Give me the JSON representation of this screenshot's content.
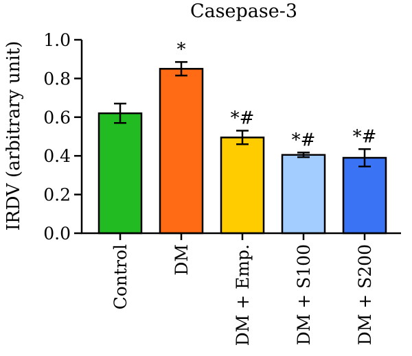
{
  "chart_data": {
    "type": "bar",
    "title": "Casepase-3",
    "ylabel": "IRDV (arbitrary unit)",
    "xlabel": "",
    "ylim": [
      0,
      1.0
    ],
    "yticks": [
      "0.0",
      "0.2",
      "0.4",
      "0.6",
      "0.8",
      "1.0"
    ],
    "categories": [
      "Control",
      "DM",
      "DM + Emp.",
      "DM + S100",
      "DM + S200"
    ],
    "values": [
      0.62,
      0.85,
      0.495,
      0.405,
      0.39
    ],
    "errors": [
      0.05,
      0.035,
      0.035,
      0.012,
      0.045
    ],
    "annotations": [
      "",
      "*",
      "*#",
      "*#",
      "*#"
    ],
    "colors": [
      "#22bb22",
      "#ff6a14",
      "#ffcc00",
      "#a3ccff",
      "#3b73f5"
    ],
    "grid": false,
    "legend": "none"
  }
}
